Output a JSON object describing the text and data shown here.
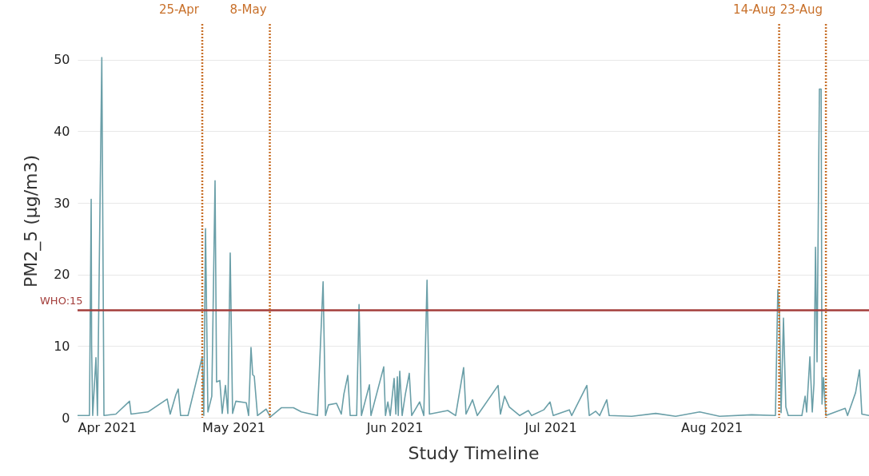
{
  "chart_data": {
    "type": "line",
    "xlabel": "Study Timeline",
    "ylabel": "PM2_5 (μg/m3)",
    "xlim": [
      "2021-04-01",
      "2021-08-31T07:00"
    ],
    "xticks": [
      {
        "value": "2021-04-01",
        "label": "Apr 2021"
      },
      {
        "value": "2021-05-01",
        "label": "May 2021"
      },
      {
        "value": "2021-06-01",
        "label": "Jun 2021"
      },
      {
        "value": "2021-07-01",
        "label": "Jul 2021"
      },
      {
        "value": "2021-08-01",
        "label": "Aug 2021"
      }
    ],
    "ylim": [
      0,
      55
    ],
    "yticks": [
      0,
      10,
      20,
      30,
      40,
      50
    ],
    "grid": "y",
    "series": [
      {
        "color": "#6a9fa8",
        "x": [
          "2021-04-01T00:00",
          "2021-04-03T07:00",
          "2021-04-03T15:00",
          "2021-04-03T17:00",
          "2021-04-03T22:00",
          "2021-04-04T13:00",
          "2021-04-04T20:00",
          "2021-04-05T16:00",
          "2021-04-06T02:00",
          "2021-04-08T09:00",
          "2021-04-11T00:00",
          "2021-04-11T07:00",
          "2021-04-14T13:00",
          "2021-04-18T06:00",
          "2021-04-18T20:00",
          "2021-04-19T22:00",
          "2021-04-20T09:00",
          "2021-04-20T20:00",
          "2021-04-22T06:00",
          "2021-04-25T00:00",
          "2021-04-25T07:00",
          "2021-04-25T15:00",
          "2021-04-26T02:00",
          "2021-04-26T20:00",
          "2021-04-27T11:00",
          "2021-04-27T18:00",
          "2021-04-28T09:00",
          "2021-04-28T20:00",
          "2021-04-29T11:00",
          "2021-04-29T22:00",
          "2021-04-30T09:00",
          "2021-04-30T20:00",
          "2021-05-01T11:00",
          "2021-05-03T11:00",
          "2021-05-03T22:00",
          "2021-05-04T09:00",
          "2021-05-04T17:00",
          "2021-05-05T00:00",
          "2021-05-05T15:00",
          "2021-05-07T07:00",
          "2021-05-08T02:00",
          "2021-05-10T06:00",
          "2021-05-12T13:00",
          "2021-05-14T02:00",
          "2021-05-17T04:00",
          "2021-05-18T06:00",
          "2021-05-18T17:00",
          "2021-05-19T07:00",
          "2021-05-20T20:00",
          "2021-05-21T18:00",
          "2021-05-22T06:00",
          "2021-05-23T00:00",
          "2021-05-23T11:00",
          "2021-05-24T17:00",
          "2021-05-25T04:00",
          "2021-05-25T15:00",
          "2021-05-27T04:00",
          "2021-05-27T11:00",
          "2021-05-29T22:00",
          "2021-05-30T06:00",
          "2021-05-30T17:00",
          "2021-05-31T04:00",
          "2021-05-31T22:00",
          "2021-06-01T06:00",
          "2021-06-01T13:00",
          "2021-06-01T17:00",
          "2021-06-02T00:00",
          "2021-06-02T11:00",
          "2021-06-03T02:00",
          "2021-06-03T20:00",
          "2021-06-04T07:00",
          "2021-06-05T20:00",
          "2021-06-06T15:00",
          "2021-06-07T06:00",
          "2021-06-07T17:00",
          "2021-06-11T06:00",
          "2021-06-12T18:00",
          "2021-06-14T07:00",
          "2021-06-14T18:00",
          "2021-06-16T00:00",
          "2021-06-16T22:00",
          "2021-06-20T22:00",
          "2021-06-21T09:00",
          "2021-06-22T04:00",
          "2021-06-23T02:00",
          "2021-06-25T02:00",
          "2021-06-26T18:00",
          "2021-06-27T09:00",
          "2021-06-29T17:00",
          "2021-06-30T22:00",
          "2021-07-01T13:00",
          "2021-07-04T15:00",
          "2021-07-05T02:00",
          "2021-07-08T00:00",
          "2021-07-08T11:00",
          "2021-07-09T17:00",
          "2021-07-10T11:00",
          "2021-07-11T20:00",
          "2021-07-12T07:00",
          "2021-07-16T15:00",
          "2021-07-21T06:00",
          "2021-07-25T02:00",
          "2021-07-29T17:00",
          "2021-08-02T13:00",
          "2021-08-08T17:00",
          "2021-08-13T07:00",
          "2021-08-13T18:00",
          "2021-08-14T02:00",
          "2021-08-14T09:00",
          "2021-08-14T20:00",
          "2021-08-15T07:00",
          "2021-08-15T18:00",
          "2021-08-18T09:00",
          "2021-08-19T00:00",
          "2021-08-19T07:00",
          "2021-08-19T22:00",
          "2021-08-20T09:00",
          "2021-08-20T17:00",
          "2021-08-21T00:00",
          "2021-08-21T07:00",
          "2021-08-21T15:00",
          "2021-08-21T18:00",
          "2021-08-22T02:00",
          "2021-08-22T06:00",
          "2021-08-22T13:00",
          "2021-08-23T00:00",
          "2021-08-26T17:00",
          "2021-08-27T04:00",
          "2021-08-28T17:00",
          "2021-08-29T11:00",
          "2021-08-29T22:00",
          "2021-08-31T07:00"
        ],
        "values": [
          0.3,
          0.3,
          30.5,
          10,
          0.3,
          8.4,
          0.3,
          50.3,
          0.3,
          0.5,
          2.3,
          0.5,
          0.8,
          2.6,
          0.5,
          3.2,
          4,
          0.3,
          0.3,
          8.5,
          0.3,
          26.4,
          0.8,
          3,
          33.1,
          5,
          5.2,
          0.6,
          4.5,
          0.6,
          23,
          0.6,
          2.3,
          2.1,
          0.3,
          9.8,
          6,
          5.8,
          0.3,
          1.2,
          0.1,
          1.4,
          1.4,
          0.8,
          0.3,
          19,
          0.3,
          1.8,
          2,
          0.5,
          3.3,
          5.9,
          0.3,
          0.3,
          15.8,
          0.3,
          4.6,
          0.3,
          7.1,
          0.3,
          2.2,
          0.3,
          5.5,
          0.5,
          5.7,
          0.3,
          6.5,
          0.3,
          3.3,
          6.2,
          0.3,
          2.2,
          0.3,
          19.2,
          0.5,
          1,
          0.3,
          7,
          0.5,
          2.5,
          0.3,
          4.5,
          0.5,
          3,
          1.5,
          0.3,
          1,
          0.3,
          1.1,
          2.2,
          0.3,
          1.1,
          0.3,
          4.5,
          0.3,
          0.9,
          0.3,
          2.5,
          0.3,
          0.2,
          0.6,
          0.2,
          0.8,
          0.2,
          0.4,
          0.3,
          17.9,
          14.4,
          0.7,
          13.9,
          1.5,
          0.3,
          0.3,
          3,
          0.8,
          8.5,
          0.8,
          4.8,
          23.8,
          7.8,
          36.1,
          45.9,
          45.9,
          1.9,
          5.6,
          0.3,
          1.3,
          0.3,
          3.5,
          6.7,
          0.5,
          0.3
        ]
      }
    ],
    "ref_lines": [
      {
        "axis": "y",
        "value": 15,
        "label": "WHO:15",
        "color": "#a33d3a",
        "line_style": "solid"
      },
      {
        "axis": "x",
        "value": "2021-04-25",
        "label": "25-Apr",
        "color": "#c8702a",
        "line_style": "dotted"
      },
      {
        "axis": "x",
        "value": "2021-05-08",
        "label": "8-May",
        "color": "#c8702a",
        "line_style": "dotted"
      },
      {
        "axis": "x",
        "value": "2021-08-14",
        "label": "14-Aug",
        "color": "#c8702a",
        "line_style": "dotted"
      },
      {
        "axis": "x",
        "value": "2021-08-23",
        "label": "23-Aug",
        "color": "#c8702a",
        "line_style": "dotted"
      }
    ]
  }
}
